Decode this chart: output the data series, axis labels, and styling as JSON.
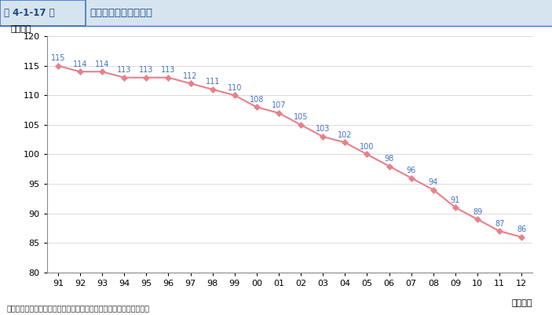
{
  "fig_num": "第 4-1-17 図",
  "chart_title": "商工会の会員数の推移",
  "ylabel": "（万者）",
  "xlabel_suffix": "（年度）",
  "source": "資料：全国商工会連合会「商工会実態調査」に基づき中小企業庁作成",
  "years": [
    "91",
    "92",
    "93",
    "94",
    "95",
    "96",
    "97",
    "98",
    "99",
    "00",
    "01",
    "02",
    "03",
    "04",
    "05",
    "06",
    "07",
    "08",
    "09",
    "10",
    "11",
    "12"
  ],
  "values": [
    115,
    114,
    114,
    113,
    113,
    113,
    112,
    111,
    110,
    108,
    107,
    105,
    103,
    102,
    100,
    98,
    96,
    94,
    91,
    89,
    87,
    86
  ],
  "ylim": [
    80,
    120
  ],
  "yticks": [
    80,
    85,
    90,
    95,
    100,
    105,
    110,
    115,
    120
  ],
  "line_color": "#E8808A",
  "marker_color": "#E8808A",
  "label_color": "#4472C4",
  "background_color": "#FFFFFF",
  "header_bg": "#D6E4F0",
  "header_border_color": "#4472C4",
  "fig_num_color": "#1F497D",
  "title_color": "#1F497D",
  "source_color": "#333333",
  "grid_color": "#CCCCCC",
  "spine_color": "#888888"
}
